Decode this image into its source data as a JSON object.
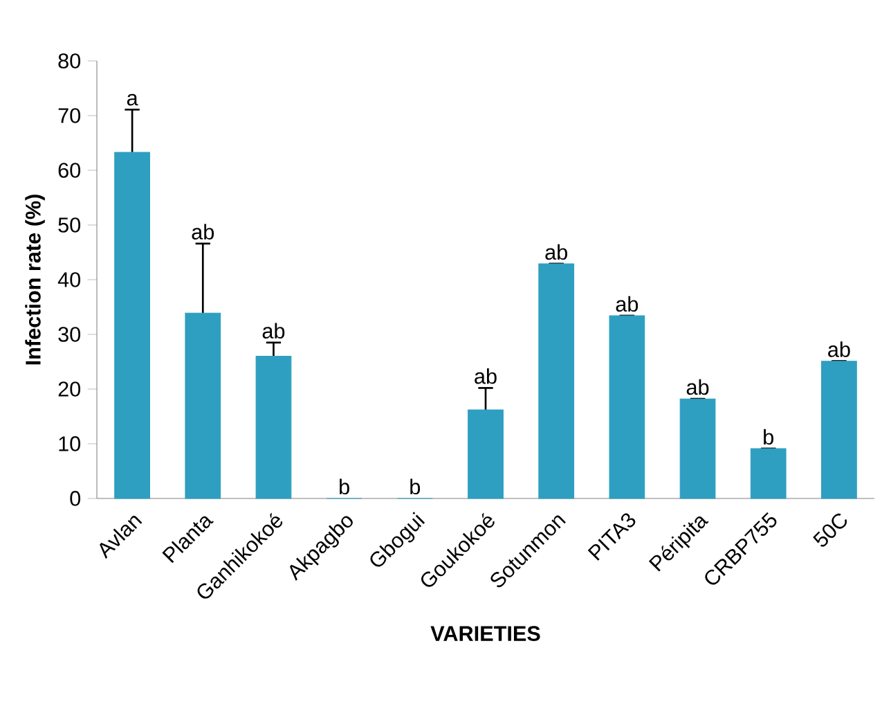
{
  "chart_data": {
    "type": "bar",
    "xlabel": "VARIETIES",
    "ylabel": "Infection rate (%)",
    "categories": [
      "Avlan",
      "Planta",
      "Ganhikokoé",
      "Akpagbo",
      "Gbogui",
      "Goukokoé",
      "Sotunmon",
      "PITA3",
      "Péripita",
      "CRBP755",
      "50C"
    ],
    "values": [
      63.3,
      33.9,
      26.0,
      0,
      0,
      16.2,
      42.9,
      33.4,
      18.2,
      9.1,
      25.1
    ],
    "errors": [
      7.8,
      12.7,
      2.5,
      null,
      null,
      4,
      0,
      0,
      0,
      0,
      0
    ],
    "color": "#2e9fc0",
    "ylim": [
      0,
      80
    ],
    "yticks": [
      0,
      10,
      20,
      30,
      40,
      50,
      60,
      70,
      80
    ],
    "grid": false,
    "annotations": [
      {
        "text": "a",
        "x": "Avlan",
        "y": 71.1
      },
      {
        "text": "ab",
        "x": "Planta",
        "y": 46.6
      },
      {
        "text": "ab",
        "x": "Ganhikokoé",
        "y": 28.5
      },
      {
        "text": "b",
        "x": "Akpagbo",
        "y": 0
      },
      {
        "text": "b",
        "x": "Gbogui",
        "y": 0
      },
      {
        "text": "ab",
        "x": "Goukokoé",
        "y": 20.2
      },
      {
        "text": "ab",
        "x": "Sotunmon",
        "y": 42.9
      },
      {
        "text": "ab",
        "x": "PITA3",
        "y": 33.4
      },
      {
        "text": "ab",
        "x": "Péripita",
        "y": 18.2
      },
      {
        "text": "b",
        "x": "CRBP755",
        "y": 9.1
      },
      {
        "text": "ab",
        "x": "50C",
        "y": 25.1
      }
    ]
  }
}
